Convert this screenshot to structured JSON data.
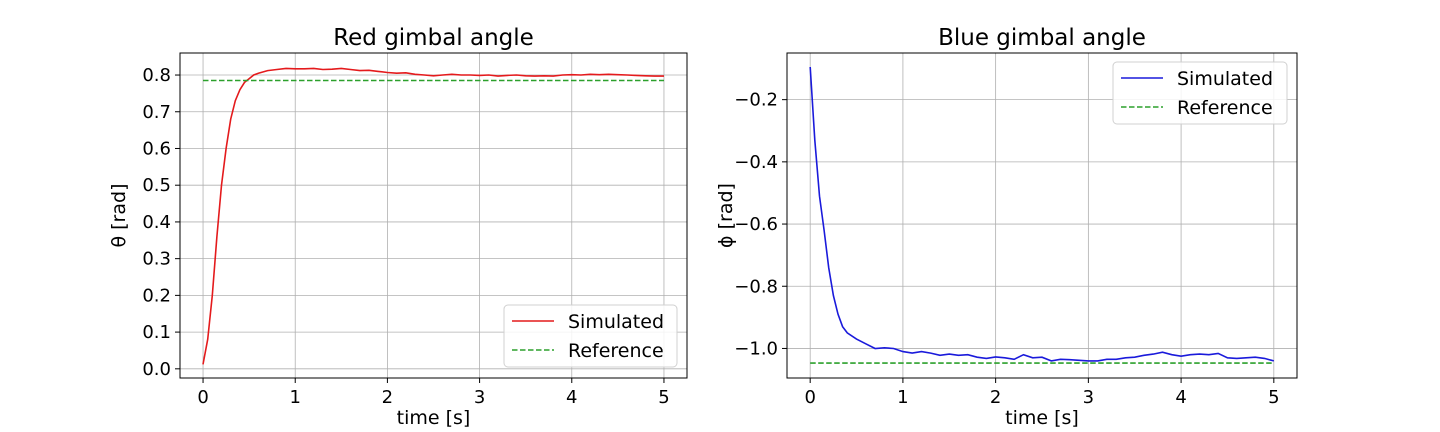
{
  "chart_data": [
    {
      "type": "line",
      "title": "Red gimbal angle",
      "xlabel": "time [s]",
      "ylabel": "θ [rad]",
      "xlim": [
        -0.25,
        5.25
      ],
      "ylim": [
        -0.025,
        0.86
      ],
      "xticks": [
        0,
        1,
        2,
        3,
        4,
        5
      ],
      "yticks": [
        0.0,
        0.1,
        0.2,
        0.3,
        0.4,
        0.5,
        0.6,
        0.7,
        0.8
      ],
      "ytick_labels": [
        "0.0",
        "0.1",
        "0.2",
        "0.3",
        "0.4",
        "0.5",
        "0.6",
        "0.7",
        "0.8"
      ],
      "grid": true,
      "legend_position": "lower-right",
      "series": [
        {
          "name": "Simulated",
          "color": "#e41a1c",
          "style": "solid",
          "x": [
            0,
            0.05,
            0.1,
            0.15,
            0.2,
            0.25,
            0.3,
            0.35,
            0.4,
            0.45,
            0.5,
            0.55,
            0.6,
            0.7,
            0.8,
            0.9,
            1.0,
            1.1,
            1.2,
            1.3,
            1.4,
            1.5,
            1.6,
            1.7,
            1.8,
            1.9,
            2.0,
            2.1,
            2.2,
            2.3,
            2.4,
            2.5,
            2.6,
            2.7,
            2.8,
            2.9,
            3.0,
            3.1,
            3.2,
            3.3,
            3.4,
            3.5,
            3.6,
            3.7,
            3.8,
            3.9,
            4.0,
            4.1,
            4.2,
            4.3,
            4.4,
            4.5,
            4.6,
            4.7,
            4.8,
            4.9,
            5.0
          ],
          "values": [
            0.012,
            0.08,
            0.2,
            0.36,
            0.5,
            0.6,
            0.68,
            0.73,
            0.76,
            0.78,
            0.79,
            0.8,
            0.805,
            0.812,
            0.815,
            0.818,
            0.817,
            0.817,
            0.818,
            0.815,
            0.816,
            0.818,
            0.815,
            0.812,
            0.813,
            0.81,
            0.807,
            0.805,
            0.806,
            0.802,
            0.8,
            0.798,
            0.8,
            0.802,
            0.8,
            0.8,
            0.799,
            0.8,
            0.797,
            0.799,
            0.8,
            0.798,
            0.797,
            0.798,
            0.797,
            0.8,
            0.801,
            0.8,
            0.802,
            0.801,
            0.802,
            0.801,
            0.8,
            0.799,
            0.798,
            0.797,
            0.797
          ]
        },
        {
          "name": "Reference",
          "color": "#2ca02c",
          "style": "dashed",
          "x": [
            0,
            5
          ],
          "values": [
            0.785,
            0.785
          ]
        }
      ]
    },
    {
      "type": "line",
      "title": "Blue gimbal angle",
      "xlabel": "time [s]",
      "ylabel": "ϕ [rad]",
      "xlim": [
        -0.25,
        5.25
      ],
      "ylim": [
        -1.095,
        -0.05
      ],
      "xticks": [
        0,
        1,
        2,
        3,
        4,
        5
      ],
      "yticks": [
        -0.2,
        -0.4,
        -0.6,
        -0.8,
        -1.0
      ],
      "ytick_labels": [
        "−0.2",
        "−0.4",
        "−0.6",
        "−0.8",
        "−1.0"
      ],
      "grid": true,
      "legend_position": "upper-right",
      "series": [
        {
          "name": "Simulated",
          "color": "#1a1adb",
          "style": "solid",
          "x": [
            0,
            0.05,
            0.1,
            0.15,
            0.2,
            0.25,
            0.3,
            0.35,
            0.4,
            0.5,
            0.6,
            0.7,
            0.8,
            0.9,
            1.0,
            1.1,
            1.2,
            1.3,
            1.4,
            1.5,
            1.6,
            1.7,
            1.8,
            1.9,
            2.0,
            2.1,
            2.2,
            2.3,
            2.4,
            2.5,
            2.6,
            2.7,
            2.8,
            2.9,
            3.0,
            3.1,
            3.2,
            3.3,
            3.4,
            3.5,
            3.6,
            3.7,
            3.8,
            3.9,
            4.0,
            4.1,
            4.2,
            4.3,
            4.4,
            4.5,
            4.6,
            4.7,
            4.8,
            4.9,
            5.0
          ],
          "values": [
            -0.095,
            -0.33,
            -0.51,
            -0.62,
            -0.74,
            -0.83,
            -0.89,
            -0.93,
            -0.95,
            -0.97,
            -0.985,
            -1.0,
            -0.998,
            -1.0,
            -1.01,
            -1.015,
            -1.01,
            -1.015,
            -1.022,
            -1.018,
            -1.022,
            -1.02,
            -1.028,
            -1.032,
            -1.027,
            -1.03,
            -1.035,
            -1.02,
            -1.03,
            -1.028,
            -1.04,
            -1.035,
            -1.036,
            -1.038,
            -1.04,
            -1.04,
            -1.035,
            -1.035,
            -1.03,
            -1.028,
            -1.022,
            -1.018,
            -1.012,
            -1.02,
            -1.025,
            -1.02,
            -1.018,
            -1.02,
            -1.016,
            -1.03,
            -1.032,
            -1.03,
            -1.028,
            -1.032,
            -1.04
          ]
        },
        {
          "name": "Reference",
          "color": "#2ca02c",
          "style": "dashed",
          "x": [
            0,
            5
          ],
          "values": [
            -1.047,
            -1.047
          ]
        }
      ]
    }
  ]
}
